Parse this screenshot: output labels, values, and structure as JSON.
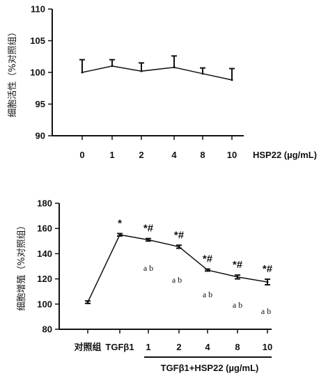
{
  "chart_data": [
    {
      "type": "line",
      "ylabel": "细胞活性（%对照组）",
      "xlabel": "HSP22 (µg/mL)",
      "categories": [
        "0",
        "1",
        "2",
        "4",
        "8",
        "10"
      ],
      "values": [
        100,
        101,
        100.2,
        100.8,
        99.8,
        98.8
      ],
      "errors": [
        2.0,
        1.0,
        1.3,
        1.8,
        0.9,
        1.8
      ],
      "ylim": [
        90,
        110
      ],
      "yticks": [
        "90",
        "95",
        "100",
        "105",
        "110"
      ]
    },
    {
      "type": "line",
      "ylabel": "细胞增殖（%对照组）",
      "xlabel": "TGFβ1+HSP22 (µg/mL)",
      "categories": [
        "对照组",
        "TGFβ1",
        "1",
        "2",
        "4",
        "8",
        "10"
      ],
      "values": [
        101.5,
        155,
        151,
        145.5,
        127,
        121.5,
        117.5
      ],
      "errors": [
        1.0,
        1.0,
        1.0,
        1.2,
        0.8,
        1.5,
        2.2
      ],
      "significance": [
        "",
        "*",
        "*#",
        "*#",
        "*#",
        "*#",
        "*#"
      ],
      "letters": [
        "",
        "",
        "a b",
        "a b",
        "a b",
        "a b",
        "a b"
      ],
      "ylim": [
        80,
        180
      ],
      "yticks": [
        "80",
        "100",
        "120",
        "140",
        "160",
        "180"
      ]
    }
  ]
}
